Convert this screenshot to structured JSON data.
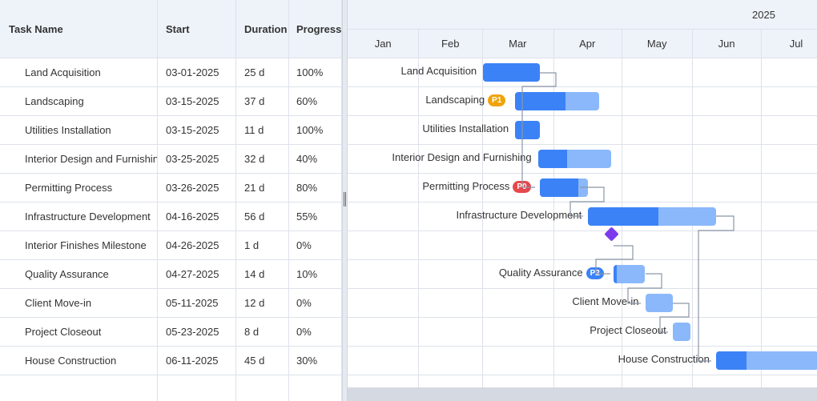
{
  "header": {
    "columns": [
      "Task Name",
      "Start",
      "Duration",
      "Progress"
    ]
  },
  "timeline": {
    "year": "2025",
    "months": [
      "Jan",
      "Feb",
      "Mar",
      "Apr",
      "May",
      "Jun",
      "Jul"
    ]
  },
  "tasks": [
    {
      "name": "Land Acquisition",
      "start": "03-01-2025",
      "duration": "25 d",
      "progress": "100%"
    },
    {
      "name": "Landscaping",
      "start": "03-15-2025",
      "duration": "37 d",
      "progress": "60%",
      "priority": "P1"
    },
    {
      "name": "Utilities Installation",
      "start": "03-15-2025",
      "duration": "11 d",
      "progress": "100%"
    },
    {
      "name": "Interior Design and Furnishing",
      "start": "03-25-2025",
      "duration": "32 d",
      "progress": "40%"
    },
    {
      "name": "Permitting Process",
      "start": "03-26-2025",
      "duration": "21 d",
      "progress": "80%",
      "priority": "P0"
    },
    {
      "name": "Infrastructure Development",
      "start": "04-16-2025",
      "duration": "56 d",
      "progress": "55%"
    },
    {
      "name": "Interior Finishes Milestone",
      "start": "04-26-2025",
      "duration": "1 d",
      "progress": "0%",
      "milestone": true
    },
    {
      "name": "Quality Assurance",
      "start": "04-27-2025",
      "duration": "14 d",
      "progress": "10%",
      "priority": "P2"
    },
    {
      "name": "Client Move-in",
      "start": "05-11-2025",
      "duration": "12 d",
      "progress": "0%"
    },
    {
      "name": "Project Closeout",
      "start": "05-23-2025",
      "duration": "8 d",
      "progress": "0%"
    },
    {
      "name": "House Construction",
      "start": "06-11-2025",
      "duration": "45 d",
      "progress": "30%"
    }
  ]
}
